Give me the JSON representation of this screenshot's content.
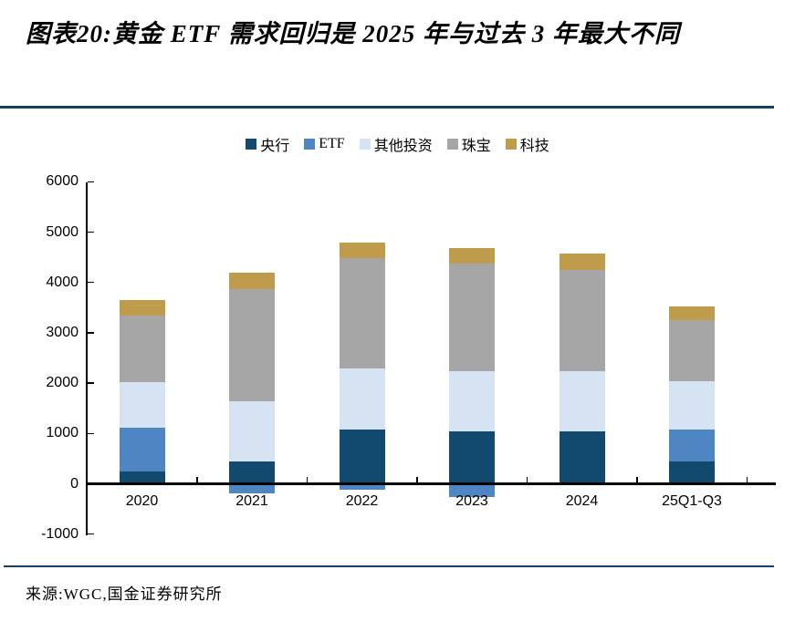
{
  "title": "图表20:黄金 ETF 需求回归是 2025 年与过去 3 年最大不同",
  "source": "来源:WGC,国金证券研究所",
  "accent_rule_color": "#16405F",
  "chart_data": {
    "type": "bar",
    "stacked": true,
    "title": "图表20:黄金 ETF 需求回归是 2025 年与过去 3 年最大不同",
    "categories": [
      "2020",
      "2021",
      "2022",
      "2023",
      "2024",
      "25Q1-Q3"
    ],
    "series": [
      {
        "name": "央行",
        "key": "central-bank",
        "color": "#12496F",
        "values": [
          250,
          450,
          1080,
          1040,
          1040,
          440
        ]
      },
      {
        "name": "ETF",
        "key": "etf",
        "color": "#4D86C2",
        "values": [
          870,
          -190,
          -120,
          -260,
          -10,
          630
        ]
      },
      {
        "name": "其他投资",
        "key": "other-investment",
        "color": "#D5E3F2",
        "values": [
          900,
          1190,
          1220,
          1190,
          1190,
          960
        ]
      },
      {
        "name": "珠宝",
        "key": "jewelry",
        "color": "#A6A6A6",
        "values": [
          1330,
          2230,
          2190,
          2150,
          2010,
          1230
        ]
      },
      {
        "name": "科技",
        "key": "technology",
        "color": "#BF9B4C",
        "values": [
          300,
          330,
          310,
          300,
          330,
          270
        ]
      }
    ],
    "ylim": [
      -1000,
      6000
    ],
    "y_tick_step": 1000,
    "y_tick_labels": [
      "6000",
      "5000",
      "4000",
      "3000",
      "2000",
      "1000",
      "0",
      "-1000"
    ],
    "xlabel": "",
    "ylabel": "",
    "legend_position": "top",
    "grid": false
  }
}
